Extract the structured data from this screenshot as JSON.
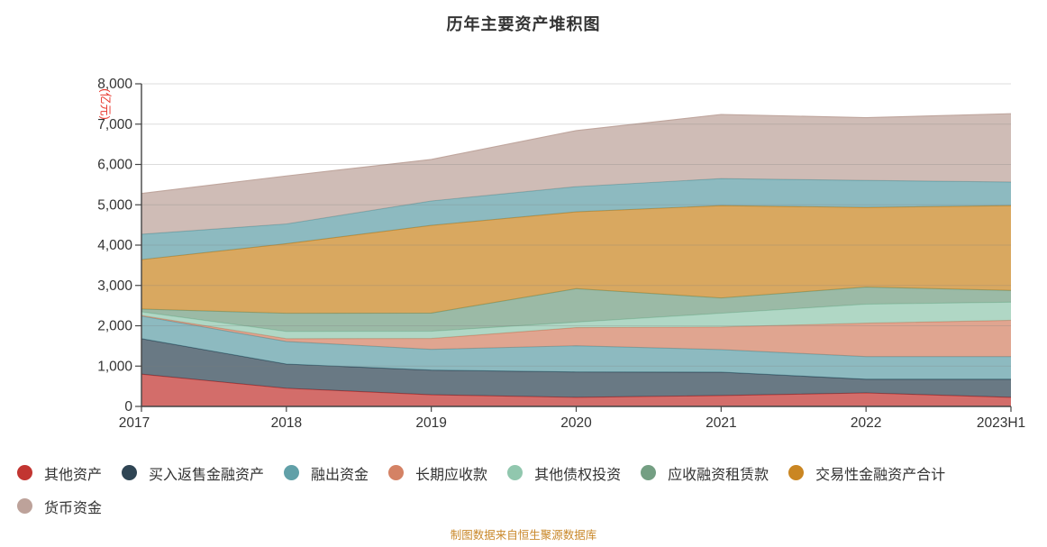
{
  "title": "历年主要资产堆积图",
  "y_axis": {
    "unit_label": "(亿元)",
    "unit_color": "#e83a30",
    "tick_labels": [
      "0",
      "1,000",
      "2,000",
      "3,000",
      "4,000",
      "5,000",
      "6,000",
      "7,000",
      "8,000"
    ]
  },
  "x_axis": {
    "labels": [
      "2017",
      "2018",
      "2019",
      "2020",
      "2021",
      "2022",
      "2023H1"
    ]
  },
  "legend": {
    "rows": [
      7,
      1
    ],
    "items": [
      {
        "label": "其他资产",
        "color": "#c23531"
      },
      {
        "label": "买入返售金融资产",
        "color": "#2f4554"
      },
      {
        "label": "融出资金",
        "color": "#61a0a8"
      },
      {
        "label": "长期应收款",
        "color": "#d48265"
      },
      {
        "label": "其他债权投资",
        "color": "#91c7ae"
      },
      {
        "label": "应收融资租赁款",
        "color": "#749f83"
      },
      {
        "label": "交易性金融资产合计",
        "color": "#ca8622"
      },
      {
        "label": "货币资金",
        "color": "#bda29a"
      }
    ]
  },
  "footer": {
    "text": "制图数据来自恒生聚源数据库",
    "color": "#c9882a"
  },
  "chart_data": {
    "type": "area",
    "stacked": true,
    "title": "历年主要资产堆积图",
    "unit": "亿元",
    "x": [
      "2017",
      "2018",
      "2019",
      "2020",
      "2021",
      "2022",
      "2023H1"
    ],
    "ylim": [
      0,
      8000
    ],
    "y_tick_step": 1000,
    "grid": true,
    "legend_position": "bottom-left",
    "series": [
      {
        "name": "其他资产",
        "color": "#c23531",
        "values": [
          800,
          450,
          290,
          225,
          270,
          335,
          225
        ]
      },
      {
        "name": "买入返售金融资产",
        "color": "#2f4554",
        "values": [
          880,
          600,
          610,
          630,
          580,
          340,
          450
        ]
      },
      {
        "name": "融出资金",
        "color": "#61a0a8",
        "values": [
          560,
          560,
          515,
          650,
          560,
          560,
          560
        ]
      },
      {
        "name": "长期应收款",
        "color": "#d48265",
        "values": [
          15,
          70,
          270,
          450,
          560,
          830,
          900
        ]
      },
      {
        "name": "其他债权投资",
        "color": "#91c7ae",
        "values": [
          90,
          180,
          180,
          135,
          340,
          470,
          450
        ]
      },
      {
        "name": "应收融资租赁款",
        "color": "#749f83",
        "values": [
          70,
          450,
          450,
          830,
          380,
          425,
          290
        ]
      },
      {
        "name": "交易性金融资产合计",
        "color": "#ca8622",
        "values": [
          1225,
          1725,
          2175,
          1905,
          2290,
          1975,
          2105
        ]
      },
      {
        "name": "融出资金",
        "color": "#61a0a8",
        "values": [
          630,
          490,
          605,
          625,
          670,
          670,
          585
        ]
      },
      {
        "name": "货币资金",
        "color": "#bda29a",
        "values": [
          1010,
          1190,
          1030,
          1390,
          1590,
          1555,
          1695
        ]
      }
    ],
    "stack_totals": [
      5280,
      5715,
      6125,
      6840,
      7240,
      7160,
      7260
    ]
  }
}
